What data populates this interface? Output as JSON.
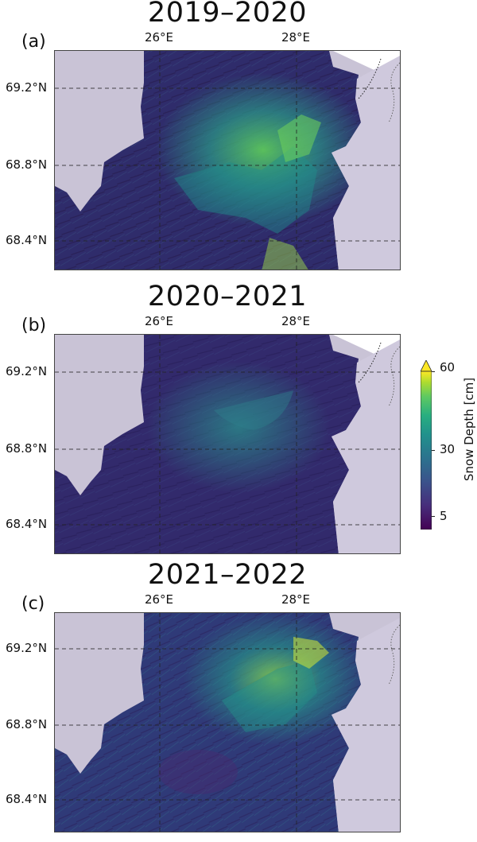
{
  "panels": [
    {
      "letter": "(a)",
      "title": "2019–2020",
      "snow_level": "high"
    },
    {
      "letter": "(b)",
      "title": "2020–2021",
      "snow_level": "low"
    },
    {
      "letter": "(c)",
      "title": "2021–2022",
      "snow_level": "medium"
    }
  ],
  "axes": {
    "lon_labels": [
      "26°E",
      "28°E"
    ],
    "lat_labels": [
      "69.2°N",
      "68.8°N",
      "68.4°N"
    ]
  },
  "colorbar": {
    "label": "Snow Depth [cm]",
    "ticks": [
      "60",
      "30",
      "5"
    ],
    "colormap": "viridis",
    "extend": "max"
  },
  "colors": {
    "background_land": "#c9c3d6",
    "low_snow": "#3b2a6e",
    "mid_snow": "#2a8a8a",
    "high_snow": "#d6e22a"
  }
}
